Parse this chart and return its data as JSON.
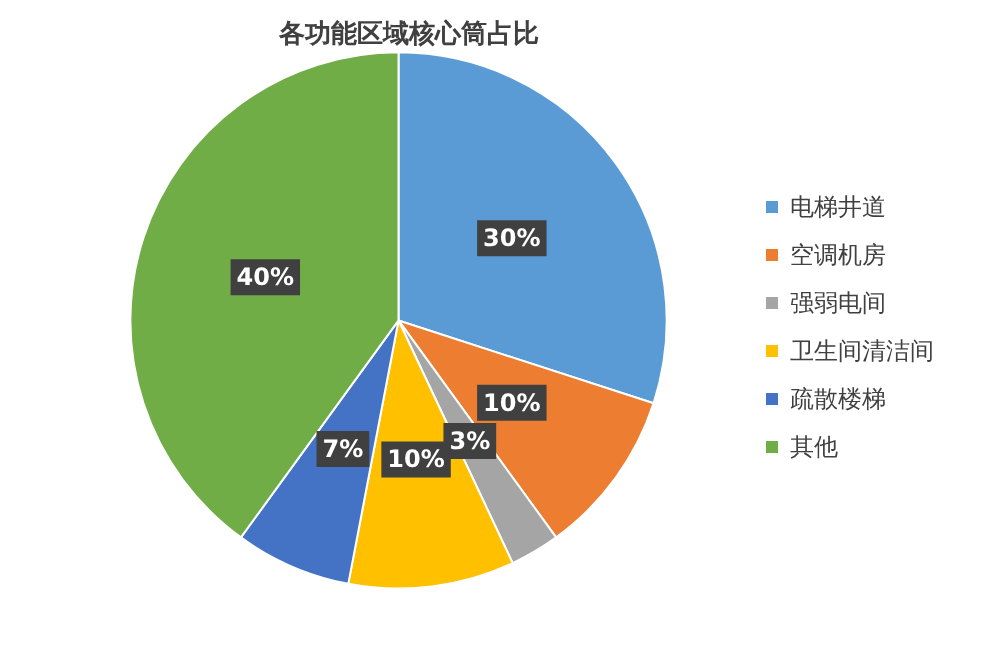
{
  "chart_data": {
    "type": "pie",
    "title": "各功能区域核心筒占比",
    "categories": [
      "电梯井道",
      "空调机房",
      "强弱电间",
      "卫生间清洁间",
      "疏散楼梯",
      "其他"
    ],
    "values": [
      30,
      10,
      3,
      10,
      7,
      40
    ],
    "colors": [
      "#5b9bd5",
      "#ed7d31",
      "#a5a5a5",
      "#ffc000",
      "#4472c4",
      "#70ad47"
    ],
    "value_labels": [
      "30%",
      "10%",
      "3%",
      "10%",
      "7%",
      "40%"
    ],
    "legend": "right"
  }
}
